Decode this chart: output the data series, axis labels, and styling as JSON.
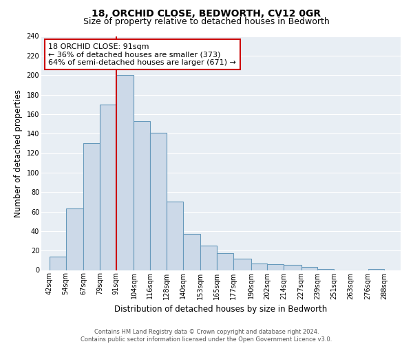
{
  "title": "18, ORCHID CLOSE, BEDWORTH, CV12 0GR",
  "subtitle": "Size of property relative to detached houses in Bedworth",
  "xlabel": "Distribution of detached houses by size in Bedworth",
  "ylabel": "Number of detached properties",
  "bar_left_edges": [
    42,
    54,
    67,
    79,
    91,
    104,
    116,
    128,
    140,
    153,
    165,
    177,
    190,
    202,
    214,
    227,
    239,
    251,
    263,
    276
  ],
  "bar_widths": [
    12,
    13,
    12,
    12,
    13,
    12,
    12,
    12,
    13,
    12,
    12,
    13,
    12,
    12,
    13,
    12,
    12,
    12,
    13,
    12
  ],
  "bar_heights": [
    14,
    63,
    130,
    170,
    200,
    153,
    141,
    70,
    37,
    25,
    17,
    12,
    7,
    6,
    5,
    3,
    1,
    0,
    0,
    1
  ],
  "bar_color": "#ccd9e8",
  "bar_edge_color": "#6699bb",
  "vline_x": 91,
  "vline_color": "#cc0000",
  "annotation_line1": "18 ORCHID CLOSE: 91sqm",
  "annotation_line2": "← 36% of detached houses are smaller (373)",
  "annotation_line3": "64% of semi-detached houses are larger (671) →",
  "annotation_box_color": "#ffffff",
  "annotation_box_edge": "#cc0000",
  "tick_labels": [
    "42sqm",
    "54sqm",
    "67sqm",
    "79sqm",
    "91sqm",
    "104sqm",
    "116sqm",
    "128sqm",
    "140sqm",
    "153sqm",
    "165sqm",
    "177sqm",
    "190sqm",
    "202sqm",
    "214sqm",
    "227sqm",
    "239sqm",
    "251sqm",
    "263sqm",
    "276sqm",
    "288sqm"
  ],
  "tick_positions": [
    42,
    54,
    67,
    79,
    91,
    104,
    116,
    128,
    140,
    153,
    165,
    177,
    190,
    202,
    214,
    227,
    239,
    251,
    263,
    276,
    288
  ],
  "xlim_left": 36,
  "xlim_right": 300,
  "ylim": [
    0,
    240
  ],
  "yticks": [
    0,
    20,
    40,
    60,
    80,
    100,
    120,
    140,
    160,
    180,
    200,
    220,
    240
  ],
  "footer": "Contains HM Land Registry data © Crown copyright and database right 2024.\nContains public sector information licensed under the Open Government Licence v3.0.",
  "plot_bg_color": "#e8eef4",
  "fig_bg_color": "#ffffff",
  "grid_color": "#ffffff",
  "title_fontsize": 10,
  "subtitle_fontsize": 9,
  "axis_label_fontsize": 8.5,
  "tick_fontsize": 7,
  "annotation_fontsize": 8,
  "footer_fontsize": 6
}
